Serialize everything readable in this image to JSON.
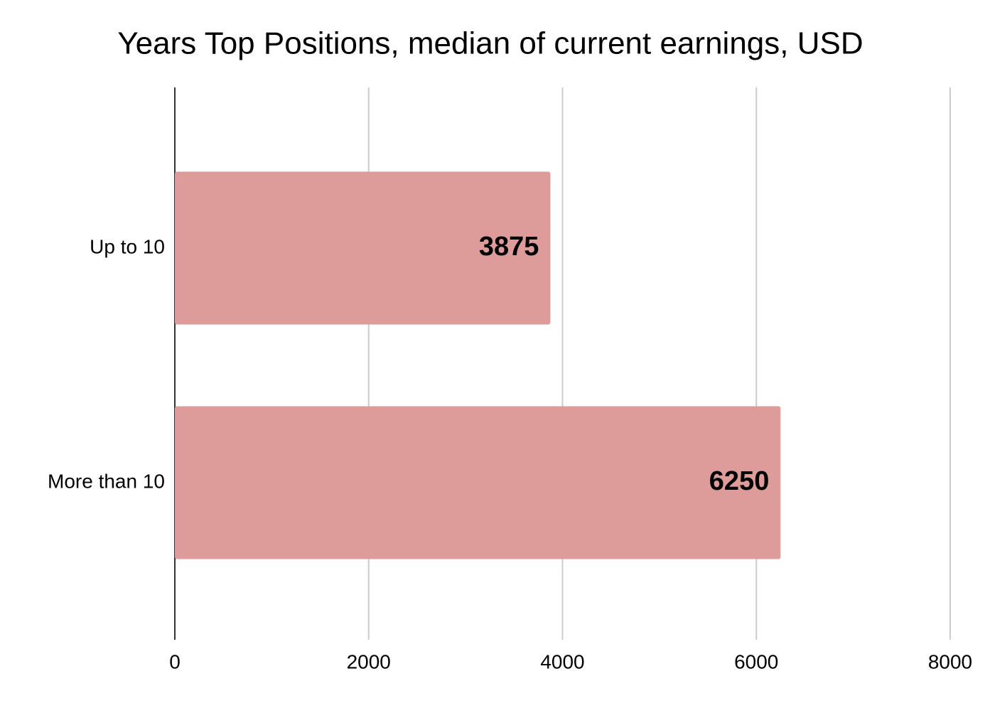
{
  "chart_data": {
    "type": "hbar",
    "title": "Years Top Positions, median of current earnings, USD",
    "categories": [
      "Up to 10",
      "More than 10"
    ],
    "values": [
      3875,
      6250
    ],
    "color": "#dd9b9a",
    "xlim": [
      0,
      8000
    ],
    "xticks": [
      0,
      2000,
      4000,
      6000,
      8000
    ],
    "grid": true
  }
}
